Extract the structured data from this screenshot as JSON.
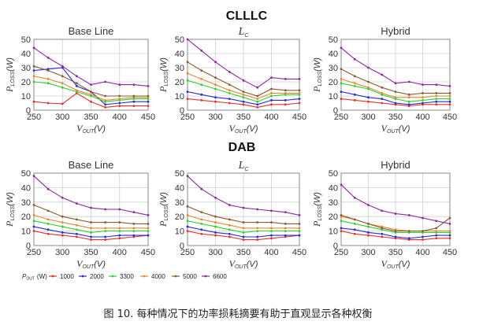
{
  "sections": [
    {
      "title": "CLLLC"
    },
    {
      "title": "DAB"
    }
  ],
  "series_legend": {
    "prefix_main": "P",
    "prefix_sub": "OUT",
    "unit": "(W)",
    "entries": [
      {
        "name": "1000",
        "color": "#e03030"
      },
      {
        "name": "2000",
        "color": "#2a2ad0"
      },
      {
        "name": "3300",
        "color": "#30d030"
      },
      {
        "name": "4000",
        "color": "#e08a30"
      },
      {
        "name": "5000",
        "color": "#8a5a30"
      },
      {
        "name": "6600",
        "color": "#8a2a9a"
      }
    ]
  },
  "axis_labels": {
    "x_main": "V",
    "x_sub": "OUT",
    "x_unit": "(V)",
    "y_main": "P",
    "y_sub": "LOSS",
    "y_unit": "(W)"
  },
  "caption": "图 10. 每种情况下的功率损耗摘要有助于直观显示各种权衡",
  "chart_data": [
    {
      "type": "line",
      "section": "CLLLC",
      "title": "Base Line",
      "x": [
        250,
        275,
        300,
        325,
        350,
        375,
        400,
        425,
        450
      ],
      "xlim": [
        250,
        450
      ],
      "ylim": [
        0,
        50
      ],
      "xticks": [
        250,
        300,
        350,
        400,
        450
      ],
      "yticks": [
        0,
        10,
        20,
        30,
        40,
        50
      ],
      "series": [
        {
          "name": "1000",
          "values": [
            6,
            5,
            4.5,
            12,
            6,
            2,
            3,
            3,
            3
          ]
        },
        {
          "name": "2000",
          "values": [
            28,
            29,
            30,
            17,
            13,
            4,
            5,
            6,
            6
          ]
        },
        {
          "name": "3300",
          "values": [
            20,
            19,
            16,
            13,
            10,
            6,
            7,
            8,
            8
          ]
        },
        {
          "name": "4000",
          "values": [
            24,
            22,
            19,
            14,
            11,
            7,
            8,
            9,
            9
          ]
        },
        {
          "name": "5000",
          "values": [
            31,
            28,
            24,
            19,
            13,
            10,
            10,
            10,
            10
          ]
        },
        {
          "name": "6600",
          "values": [
            44,
            37,
            31,
            24,
            18,
            20,
            18,
            18,
            17
          ]
        }
      ]
    },
    {
      "type": "line",
      "section": "CLLLC",
      "title": "L",
      "title_sub": "C",
      "x": [
        250,
        275,
        300,
        325,
        350,
        375,
        400,
        425,
        450
      ],
      "xlim": [
        250,
        450
      ],
      "ylim": [
        0,
        50
      ],
      "xticks": [
        250,
        300,
        350,
        400,
        450
      ],
      "yticks": [
        0,
        10,
        20,
        30,
        40,
        50
      ],
      "series": [
        {
          "name": "1000",
          "values": [
            8,
            7,
            6,
            5,
            4,
            2,
            4,
            4,
            5
          ]
        },
        {
          "name": "2000",
          "values": [
            13,
            11,
            9,
            8,
            6,
            4,
            7,
            7,
            8
          ]
        },
        {
          "name": "3300",
          "values": [
            21,
            18,
            15,
            12,
            9,
            6,
            10,
            11,
            11
          ]
        },
        {
          "name": "4000",
          "values": [
            26,
            22,
            18,
            14,
            11,
            8,
            12,
            12,
            12
          ]
        },
        {
          "name": "5000",
          "values": [
            34,
            28,
            23,
            18,
            13,
            10,
            15,
            14,
            14
          ]
        },
        {
          "name": "6600",
          "values": [
            50,
            42,
            34,
            27,
            21,
            16,
            23,
            22,
            22
          ]
        }
      ]
    },
    {
      "type": "line",
      "section": "CLLLC",
      "title": "Hybrid",
      "x": [
        250,
        275,
        300,
        325,
        350,
        375,
        400,
        425,
        450
      ],
      "xlim": [
        250,
        450
      ],
      "ylim": [
        0,
        50
      ],
      "xticks": [
        250,
        300,
        350,
        400,
        450
      ],
      "yticks": [
        0,
        10,
        20,
        30,
        40,
        50
      ],
      "series": [
        {
          "name": "1000",
          "values": [
            8,
            7,
            6,
            5,
            4,
            3,
            4,
            4,
            4
          ]
        },
        {
          "name": "2000",
          "values": [
            13,
            11,
            9,
            8,
            5,
            4,
            5,
            6,
            6
          ]
        },
        {
          "name": "3300",
          "values": [
            19,
            17,
            15,
            11,
            8,
            6,
            7,
            8,
            8
          ]
        },
        {
          "name": "4000",
          "values": [
            22,
            19,
            16,
            12,
            9,
            9,
            9,
            10,
            10
          ]
        },
        {
          "name": "5000",
          "values": [
            29,
            24,
            20,
            16,
            13,
            11,
            12,
            12,
            12
          ]
        },
        {
          "name": "6600",
          "values": [
            44,
            36,
            30,
            25,
            19,
            20,
            18,
            18,
            17
          ]
        }
      ]
    },
    {
      "type": "line",
      "section": "DAB",
      "title": "Base Line",
      "x": [
        250,
        275,
        300,
        325,
        350,
        375,
        400,
        425,
        450
      ],
      "xlim": [
        250,
        450
      ],
      "ylim": [
        0,
        50
      ],
      "xticks": [
        250,
        300,
        350,
        400,
        450
      ],
      "yticks": [
        0,
        10,
        20,
        30,
        40,
        50
      ],
      "series": [
        {
          "name": "1000",
          "values": [
            10,
            8,
            7,
            6,
            4,
            4,
            5,
            6,
            7
          ]
        },
        {
          "name": "2000",
          "values": [
            13,
            11,
            9,
            8,
            6,
            6,
            7,
            7,
            7
          ]
        },
        {
          "name": "3300",
          "values": [
            17,
            15,
            13,
            11,
            9,
            10,
            10,
            10,
            10
          ]
        },
        {
          "name": "4000",
          "values": [
            21,
            18,
            16,
            14,
            12,
            12,
            12,
            12,
            12
          ]
        },
        {
          "name": "5000",
          "values": [
            28,
            24,
            20,
            18,
            16,
            16,
            16,
            15,
            15
          ]
        },
        {
          "name": "6600",
          "values": [
            48,
            39,
            33,
            29,
            26,
            25,
            25,
            23,
            21
          ]
        }
      ]
    },
    {
      "type": "line",
      "section": "DAB",
      "title": "L",
      "title_sub": "C",
      "x": [
        250,
        275,
        300,
        325,
        350,
        375,
        400,
        425,
        450
      ],
      "xlim": [
        250,
        450
      ],
      "ylim": [
        0,
        50
      ],
      "xticks": [
        250,
        300,
        350,
        400,
        450
      ],
      "yticks": [
        0,
        10,
        20,
        30,
        40,
        50
      ],
      "series": [
        {
          "name": "1000",
          "values": [
            10,
            8,
            7,
            6,
            4,
            4,
            5,
            6,
            7
          ]
        },
        {
          "name": "2000",
          "values": [
            13,
            11,
            9,
            8,
            6,
            6,
            7,
            7,
            7
          ]
        },
        {
          "name": "3300",
          "values": [
            17,
            15,
            13,
            11,
            9,
            10,
            10,
            10,
            10
          ]
        },
        {
          "name": "4000",
          "values": [
            21,
            18,
            16,
            14,
            12,
            12,
            12,
            12,
            12
          ]
        },
        {
          "name": "5000",
          "values": [
            27,
            23,
            20,
            18,
            16,
            16,
            16,
            15,
            15
          ]
        },
        {
          "name": "6600",
          "values": [
            48,
            39,
            33,
            28,
            26,
            25,
            24,
            23,
            21
          ]
        }
      ]
    },
    {
      "type": "line",
      "section": "DAB",
      "title": "Hybrid",
      "x": [
        250,
        275,
        300,
        325,
        350,
        375,
        400,
        425,
        450
      ],
      "xlim": [
        250,
        450
      ],
      "ylim": [
        0,
        50
      ],
      "xticks": [
        250,
        300,
        350,
        400,
        450
      ],
      "yticks": [
        0,
        10,
        20,
        30,
        40,
        50
      ],
      "series": [
        {
          "name": "1000",
          "values": [
            10,
            8,
            7,
            6,
            5,
            4,
            4,
            5,
            5
          ]
        },
        {
          "name": "2000",
          "values": [
            12,
            11,
            9,
            8,
            6,
            5,
            6,
            7,
            7
          ]
        },
        {
          "name": "3300",
          "values": [
            17,
            15,
            13,
            11,
            9,
            9,
            9,
            9,
            9
          ]
        },
        {
          "name": "4000",
          "values": [
            20,
            18,
            15,
            13,
            11,
            10,
            10,
            10,
            10
          ]
        },
        {
          "name": "5000",
          "values": [
            21,
            18,
            15,
            12,
            10,
            10,
            10,
            12,
            19
          ]
        },
        {
          "name": "6600",
          "values": [
            42,
            33,
            28,
            24,
            22,
            21,
            19,
            17,
            15
          ]
        }
      ]
    }
  ]
}
